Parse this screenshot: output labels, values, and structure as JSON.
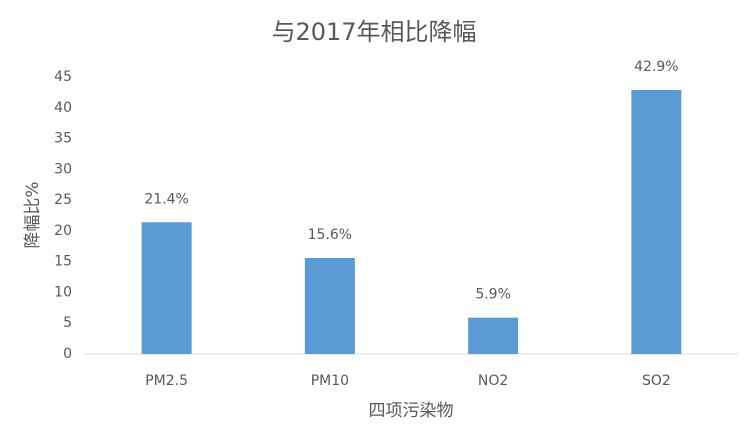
{
  "chart_data": {
    "type": "bar",
    "title": "与2017年相比降幅",
    "y_label": "降幅比%",
    "x_label": "四项污染物",
    "categories": [
      "PM2.5",
      "PM10",
      "NO2",
      "SO2"
    ],
    "values": [
      21.4,
      15.6,
      5.9,
      42.9
    ],
    "value_labels": [
      "21.4%",
      "15.6%",
      "5.9%",
      "42.9%"
    ],
    "color": "#5b9bd5",
    "ylim": [
      0,
      45
    ],
    "yticks": [
      0,
      5,
      10,
      15,
      20,
      25,
      30,
      35,
      40,
      45
    ],
    "grid": false
  }
}
